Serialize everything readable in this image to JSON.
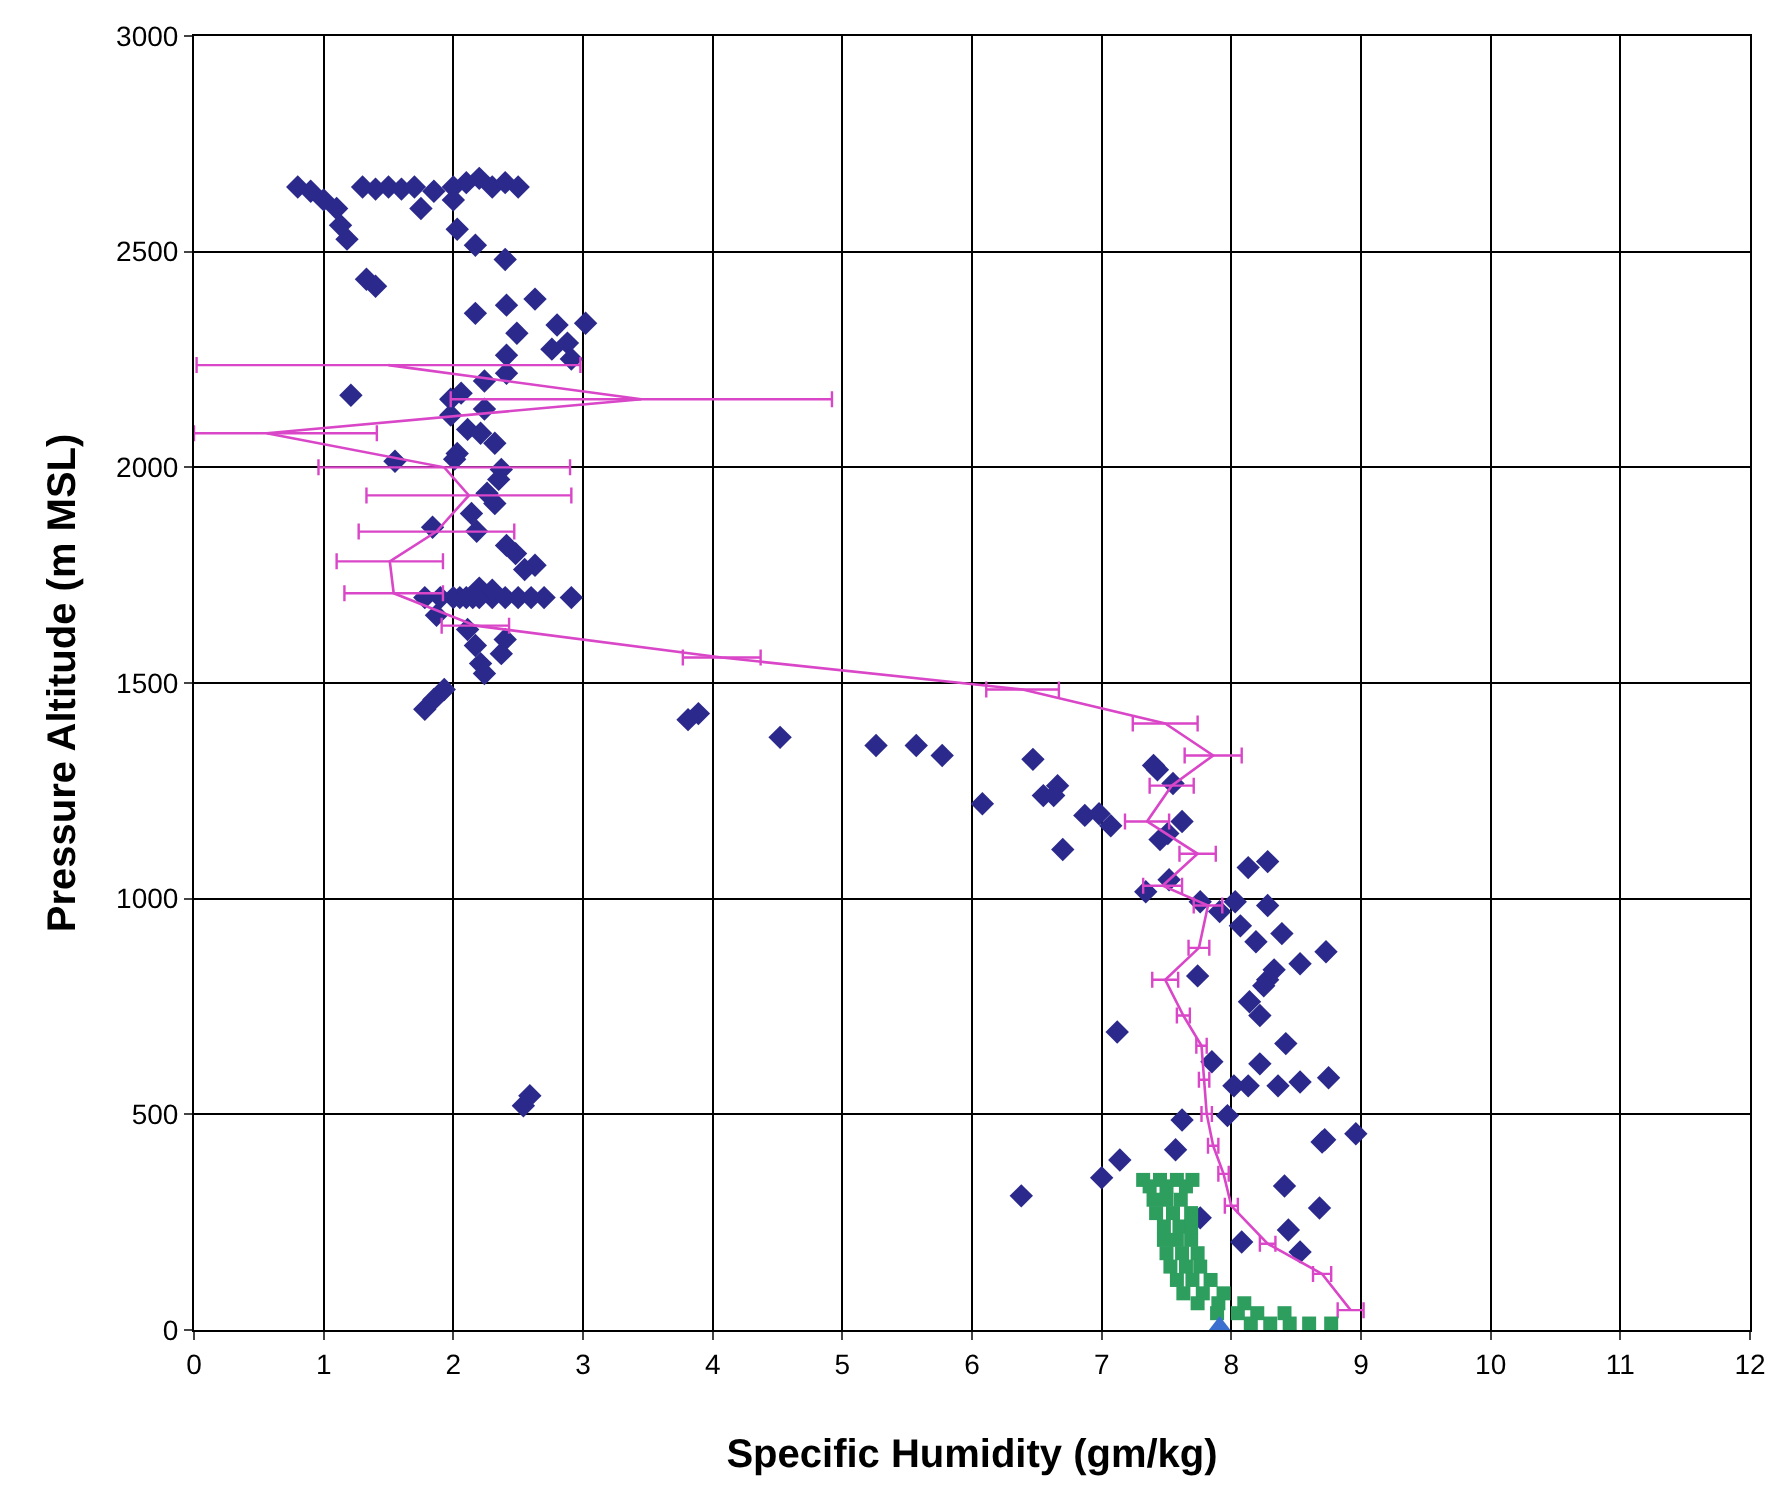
{
  "chart_data": {
    "type": "scatter",
    "xlabel": "Specific Humidity (gm/kg)",
    "ylabel": "Pressure Altitude (m MSL)",
    "xlim": [
      0,
      12
    ],
    "xticks": [
      0,
      1,
      2,
      3,
      4,
      5,
      6,
      7,
      8,
      9,
      10,
      11,
      12
    ],
    "ylim": [
      0,
      3000
    ],
    "yticks": [
      0,
      500,
      1000,
      1500,
      2000,
      2500,
      3000
    ],
    "grid": true,
    "series": [
      {
        "marker": "diamond",
        "color": "#2b2a8c",
        "x": [
          0.8,
          0.9,
          1.0,
          1.1,
          1.13,
          1.18,
          1.33,
          1.4,
          1.3,
          1.4,
          1.5,
          1.6,
          1.7,
          1.75,
          1.85,
          2.0,
          2.0,
          2.1,
          2.2,
          2.3,
          2.4,
          2.5,
          2.03,
          2.17,
          2.4,
          2.41,
          2.63,
          2.17,
          2.49,
          2.8,
          3.02,
          2.76,
          2.88,
          2.91,
          2.41,
          2.41,
          2.24,
          1.21,
          2.06,
          1.98,
          2.24,
          1.98,
          2.11,
          2.21,
          2.32,
          2.03,
          2.01,
          1.55,
          2.37,
          2.35,
          2.26,
          2.32,
          2.14,
          1.84,
          2.18,
          2.41,
          2.48,
          2.63,
          2.55,
          1.78,
          1.9,
          2.0,
          2.05,
          2.1,
          2.15,
          2.2,
          2.3,
          2.4,
          2.5,
          2.6,
          2.7,
          2.91,
          2.2,
          2.3,
          1.87,
          2.11,
          2.17,
          2.4,
          2.37,
          2.21,
          2.24,
          1.78,
          1.85,
          1.93,
          3.81,
          3.89,
          4.52,
          5.26,
          5.57,
          5.77,
          6.08,
          6.47,
          6.55,
          6.66,
          6.63,
          6.87,
          6.98,
          7.07,
          6.7,
          7.4,
          7.43,
          7.55,
          7.62,
          7.45,
          7.51,
          7.52,
          7.34,
          8.13,
          8.28,
          7.76,
          7.91,
          8.03,
          8.28,
          8.07,
          8.19,
          8.39,
          8.53,
          8.73,
          8.33,
          8.28,
          8.25,
          7.74,
          8.14,
          8.22,
          7.12,
          8.42,
          7.85,
          8.22,
          8.02,
          8.13,
          8.36,
          8.53,
          8.75,
          7.62,
          7.97,
          8.72,
          8.96,
          8.7,
          7.14,
          7.57,
          7.0,
          6.38,
          8.41,
          8.68,
          7.76,
          8.44,
          8.08,
          8.53,
          2.54,
          2.59
        ],
        "values": [
          2650,
          2640,
          2620,
          2600,
          2561,
          2529,
          2436,
          2420,
          2650,
          2645,
          2650,
          2645,
          2650,
          2600,
          2640,
          2650,
          2620,
          2660,
          2670,
          2650,
          2660,
          2650,
          2552,
          2515,
          2482,
          2376,
          2390,
          2357,
          2311,
          2330,
          2334,
          2274,
          2288,
          2251,
          2260,
          2218,
          2200,
          2167,
          2172,
          2158,
          2135,
          2121,
          2088,
          2079,
          2056,
          2032,
          2019,
          2014,
          1995,
          1972,
          1940,
          1916,
          1893,
          1861,
          1852,
          1819,
          1800,
          1773,
          1763,
          1698,
          1698,
          1698,
          1698,
          1698,
          1698,
          1698,
          1698,
          1698,
          1698,
          1698,
          1698,
          1698,
          1720,
          1715,
          1657,
          1624,
          1587,
          1601,
          1568,
          1545,
          1522,
          1439,
          1462,
          1485,
          1415,
          1429,
          1374,
          1355,
          1355,
          1332,
          1220,
          1323,
          1239,
          1262,
          1239,
          1193,
          1197,
          1169,
          1114,
          1309,
          1299,
          1267,
          1179,
          1137,
          1151,
          1044,
          1016,
          1072,
          1086,
          993,
          970,
          993,
          984,
          937,
          900,
          919,
          849,
          877,
          835,
          812,
          798,
          821,
          761,
          729,
          691,
          664,
          622,
          617,
          566,
          566,
          566,
          575,
          585,
          487,
          497,
          441,
          455,
          436,
          394,
          418,
          353,
          311,
          334,
          283,
          260,
          232,
          204,
          181,
          520,
          543
        ]
      },
      {
        "type": "line",
        "marker": "none",
        "line_style": "solid",
        "color": "#d946c8",
        "x": [
          1.5,
          3.45,
          0.56,
          1.93,
          2.12,
          1.87,
          1.51,
          1.54,
          2.17,
          4.07,
          6.39,
          7.49,
          7.86,
          7.54,
          7.35,
          7.74,
          7.47,
          7.82,
          7.75,
          7.49,
          7.63,
          7.77,
          7.79,
          7.81,
          7.86,
          7.94,
          8.0,
          8.28,
          8.7,
          8.92
        ],
        "values": [
          2237,
          2158,
          2079,
          2000,
          1935,
          1851,
          1782,
          1708,
          1633,
          1559,
          1485,
          1406,
          1332,
          1262,
          1179,
          1104,
          1030,
          984,
          886,
          812,
          729,
          659,
          580,
          501,
          427,
          362,
          288,
          200,
          130,
          46
        ],
        "xerrors": [
          1.48,
          1.47,
          [
            0,
            1.41
          ],
          0.97,
          0.79,
          0.6,
          0.41,
          0.38,
          0.26,
          0.3,
          0.28,
          0.25,
          0.22,
          0.17,
          0.17,
          0.14,
          0.15,
          0.11,
          0.08,
          0.1,
          0.05,
          0.04,
          0.04,
          0.04,
          0.04,
          0.04,
          0.05,
          0.06,
          0.07,
          0.1
        ]
      },
      {
        "marker": "square",
        "color": "#2e9e5e",
        "x": [
          7.32,
          7.45,
          7.58,
          7.7,
          7.37,
          7.5,
          7.65,
          7.4,
          7.5,
          7.61,
          7.42,
          7.55,
          7.69,
          7.48,
          7.6,
          7.69,
          7.48,
          7.58,
          7.69,
          7.5,
          7.62,
          7.74,
          7.53,
          7.65,
          7.76,
          7.58,
          7.7,
          7.84,
          7.63,
          7.78,
          7.94,
          7.74,
          7.9,
          8.1,
          7.89,
          8.05,
          8.2,
          8.41,
          8.15,
          8.3,
          8.45,
          8.6,
          8.77
        ],
        "values": [
          348,
          348,
          348,
          348,
          333,
          333,
          333,
          302,
          302,
          302,
          271,
          271,
          271,
          240,
          240,
          240,
          209,
          209,
          209,
          178,
          178,
          178,
          147,
          147,
          147,
          116,
          116,
          116,
          85,
          85,
          85,
          62,
          62,
          62,
          39,
          39,
          39,
          39,
          15,
          15,
          15,
          15,
          15
        ]
      },
      {
        "marker": "triangle",
        "color": "#3a6fd0",
        "x": [
          7.91
        ],
        "values": [
          0
        ]
      }
    ]
  }
}
